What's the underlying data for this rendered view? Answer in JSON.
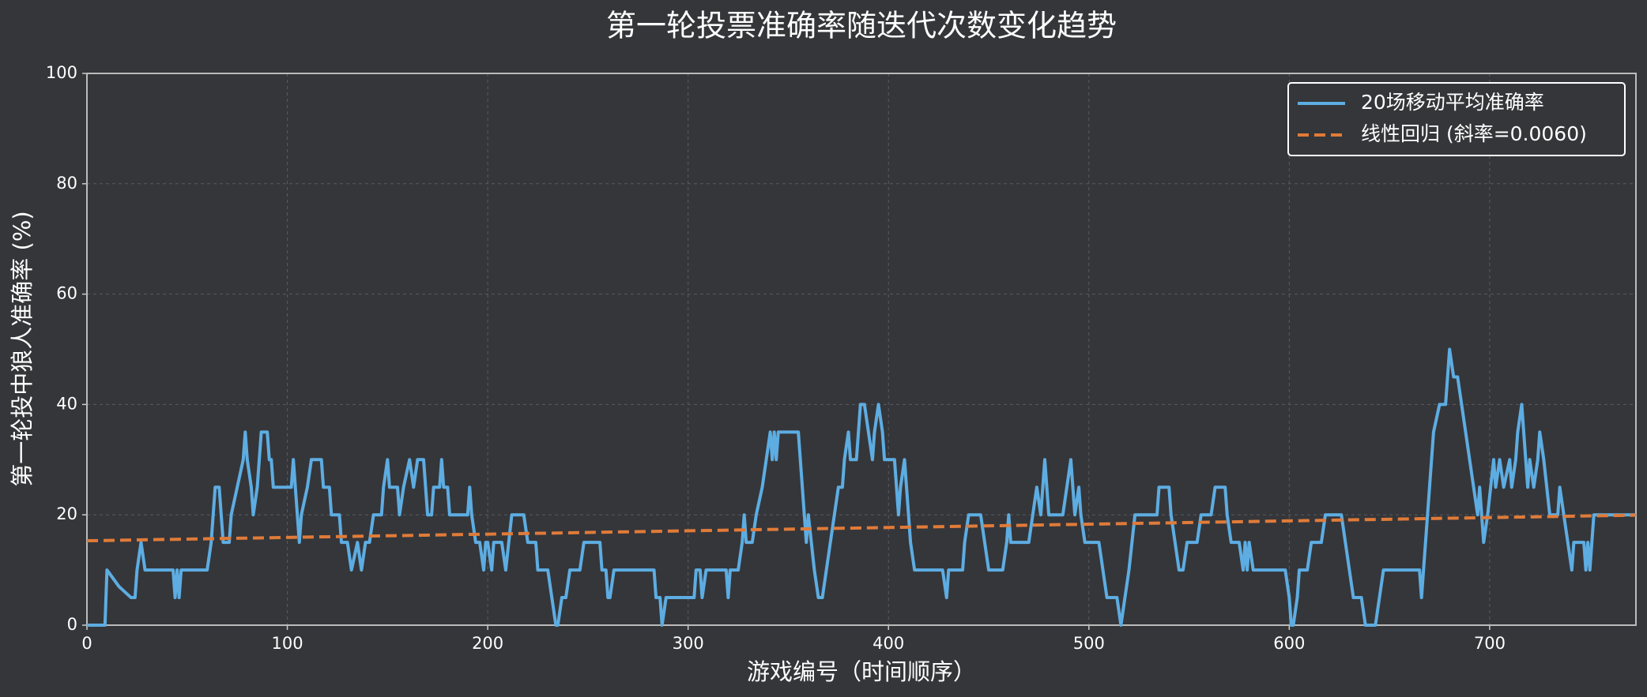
{
  "chart_data": {
    "type": "line",
    "title": "第一轮投票准确率随迭代次数变化趋势",
    "xlabel": "游戏编号（时间顺序）",
    "ylabel": "第一轮投中狼人准确率 (%)",
    "xlim": [
      0,
      773
    ],
    "ylim": [
      0,
      100
    ],
    "xticks": [
      0,
      100,
      200,
      300,
      400,
      500,
      600,
      700
    ],
    "yticks": [
      0,
      20,
      40,
      60,
      80,
      100
    ],
    "grid": true,
    "legend": "upper right",
    "series": [
      {
        "name": "20场移动平均准确率",
        "color": "#5dade2",
        "dash": false,
        "x": [
          0,
          9,
          10,
          16,
          22,
          24,
          25,
          27,
          29,
          43,
          44,
          45,
          46,
          47,
          60,
          62,
          63,
          64,
          66,
          67,
          68,
          71,
          72,
          75,
          78,
          79,
          80,
          82,
          83,
          85,
          86,
          87,
          90,
          91,
          92,
          93,
          102,
          103,
          104,
          106,
          107,
          110,
          112,
          117,
          118,
          121,
          122,
          126,
          127,
          130,
          132,
          135,
          137,
          139,
          141,
          143,
          147,
          148,
          150,
          151,
          155,
          156,
          158,
          161,
          163,
          165,
          168,
          170,
          172,
          173,
          176,
          177,
          178,
          180,
          181,
          190,
          191,
          192,
          194,
          196,
          198,
          199,
          200,
          202,
          203,
          207,
          209,
          212,
          218,
          220,
          224,
          225,
          230,
          232,
          234,
          235,
          237,
          239,
          241,
          246,
          248,
          256,
          257,
          259,
          260,
          261,
          263,
          283,
          284,
          286,
          287,
          289,
          303,
          304,
          306,
          307,
          309,
          319,
          320,
          321,
          325,
          327,
          328,
          329,
          332,
          334,
          337,
          339,
          341,
          342,
          343,
          344,
          345,
          355,
          357,
          359,
          360,
          363,
          365,
          367,
          369,
          371,
          373,
          375,
          377,
          378,
          380,
          381,
          384,
          385,
          386,
          388,
          390,
          392,
          393,
          395,
          397,
          398,
          403,
          405,
          406,
          408,
          409,
          410,
          411,
          413,
          427,
          429,
          430,
          437,
          438,
          440,
          446,
          448,
          450,
          457,
          459,
          460,
          461,
          470,
          472,
          474,
          476,
          478,
          480,
          487,
          489,
          491,
          492,
          493,
          495,
          496,
          498,
          505,
          507,
          509,
          514,
          516,
          518,
          520,
          523,
          534,
          535,
          540,
          541,
          543,
          545,
          547,
          549,
          554,
          556,
          561,
          563,
          568,
          569,
          571,
          575,
          577,
          578,
          579,
          580,
          582,
          598,
          600,
          601,
          602,
          604,
          605,
          609,
          611,
          616,
          618,
          626,
          628,
          630,
          632,
          636,
          638,
          643,
          645,
          647,
          665,
          666,
          668,
          670,
          672,
          675,
          678,
          680,
          682,
          684,
          686,
          688,
          690,
          692,
          694,
          695,
          697,
          699,
          702,
          703,
          705,
          707,
          710,
          711,
          713,
          714,
          716,
          718,
          719,
          720,
          722,
          724,
          725,
          727,
          730,
          734,
          735,
          737,
          739,
          741,
          742,
          747,
          748,
          749,
          750,
          752,
          773
        ],
        "values": [
          0,
          0,
          10,
          7,
          5,
          5,
          10,
          15,
          10,
          10,
          5,
          10,
          5,
          10,
          10,
          15,
          20,
          25,
          25,
          20,
          15,
          15,
          20,
          25,
          30,
          35,
          30,
          25,
          20,
          25,
          30,
          35,
          35,
          30,
          30,
          25,
          25,
          30,
          25,
          15,
          20,
          25,
          30,
          30,
          25,
          25,
          20,
          20,
          15,
          15,
          10,
          15,
          10,
          15,
          15,
          20,
          20,
          25,
          30,
          25,
          25,
          20,
          25,
          30,
          25,
          30,
          30,
          20,
          20,
          25,
          25,
          30,
          25,
          25,
          20,
          20,
          25,
          20,
          15,
          15,
          10,
          15,
          15,
          10,
          15,
          15,
          10,
          20,
          20,
          15,
          15,
          10,
          10,
          5,
          0,
          0,
          5,
          5,
          10,
          10,
          15,
          15,
          10,
          10,
          5,
          5,
          10,
          10,
          5,
          5,
          0,
          5,
          5,
          10,
          10,
          5,
          10,
          10,
          5,
          10,
          10,
          15,
          20,
          15,
          15,
          20,
          25,
          30,
          35,
          30,
          35,
          30,
          35,
          35,
          25,
          15,
          20,
          10,
          5,
          5,
          10,
          15,
          20,
          25,
          25,
          30,
          35,
          30,
          30,
          35,
          40,
          40,
          35,
          30,
          35,
          40,
          35,
          30,
          30,
          20,
          25,
          30,
          25,
          20,
          15,
          10,
          10,
          5,
          10,
          10,
          15,
          20,
          20,
          15,
          10,
          10,
          15,
          20,
          15,
          15,
          20,
          25,
          20,
          30,
          20,
          20,
          25,
          30,
          25,
          20,
          25,
          20,
          15,
          15,
          10,
          5,
          5,
          0,
          5,
          10,
          20,
          20,
          25,
          25,
          20,
          15,
          10,
          10,
          15,
          15,
          20,
          20,
          25,
          25,
          20,
          15,
          15,
          10,
          15,
          10,
          15,
          10,
          10,
          5,
          0,
          0,
          5,
          10,
          10,
          15,
          15,
          20,
          20,
          15,
          10,
          5,
          5,
          0,
          0,
          5,
          10,
          10,
          5,
          15,
          25,
          35,
          40,
          40,
          50,
          45,
          45,
          40,
          35,
          30,
          25,
          20,
          25,
          15,
          20,
          30,
          25,
          30,
          25,
          30,
          25,
          30,
          35,
          40,
          30,
          25,
          30,
          25,
          30,
          35,
          30,
          20,
          20,
          25,
          20,
          15,
          10,
          15,
          15,
          10,
          15,
          10,
          20,
          20
        ]
      },
      {
        "name": "线性回归 (斜率=0.0060)",
        "color": "#e07b39",
        "dash": true,
        "x": [
          0,
          773
        ],
        "values": [
          15.3,
          19.94
        ]
      }
    ]
  }
}
